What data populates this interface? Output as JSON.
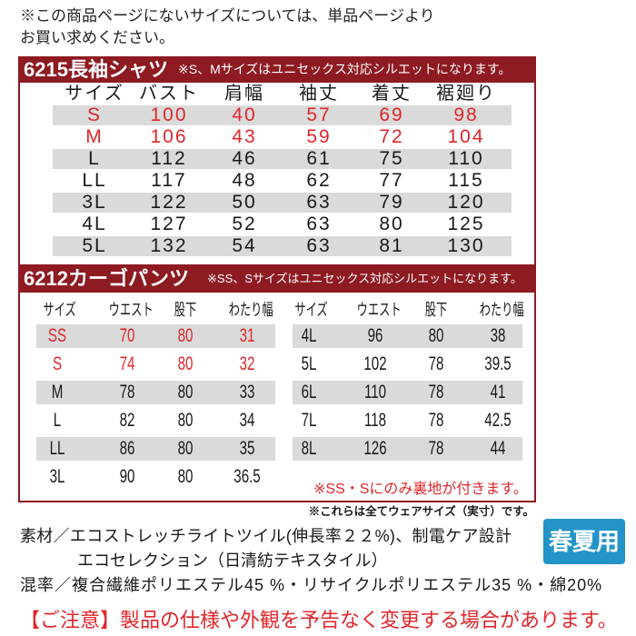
{
  "notice_top": [
    "※この商品ページにないサイズについては、単品ページより",
    "お買い求めください。"
  ],
  "colors": {
    "section_header_bg": "#8e1a22",
    "highlight_text": "#e0262b",
    "row_stripe": "#dadada",
    "season_badge_bg": "#2394c8"
  },
  "shirt": {
    "title": "6215長袖シャツ",
    "note": "※S、Mサイズはユニセックス対応シルエットになります。",
    "headers": [
      "サイズ",
      "バスト",
      "肩幅",
      "袖丈",
      "着丈",
      "裾廻り"
    ],
    "rows": [
      [
        "S",
        100,
        40,
        57,
        69,
        98
      ],
      [
        "M",
        106,
        43,
        59,
        72,
        104
      ],
      [
        "L",
        112,
        46,
        61,
        75,
        110
      ],
      [
        "LL",
        117,
        48,
        62,
        77,
        115
      ],
      [
        "3L",
        122,
        50,
        63,
        79,
        120
      ],
      [
        "4L",
        127,
        52,
        63,
        80,
        125
      ],
      [
        "5L",
        132,
        54,
        63,
        81,
        130
      ]
    ]
  },
  "pants": {
    "title": "6212カーゴパンツ",
    "note": "※SS、Sサイズはユニセックス対応シルエットになります。",
    "headers": [
      "サイズ",
      "ウエスト",
      "股下",
      "わたり幅"
    ],
    "rows_left": [
      [
        "SS",
        70,
        80,
        31
      ],
      [
        "S",
        74,
        80,
        32
      ],
      [
        "M",
        78,
        80,
        33
      ],
      [
        "L",
        82,
        80,
        34
      ],
      [
        "LL",
        86,
        80,
        35
      ],
      [
        "3L",
        90,
        80,
        36.5
      ]
    ],
    "rows_right": [
      [
        "4L",
        96,
        80,
        38
      ],
      [
        "5L",
        102,
        78,
        39.5
      ],
      [
        "6L",
        110,
        78,
        41
      ],
      [
        "7L",
        118,
        78,
        42.5
      ],
      [
        "8L",
        126,
        78,
        44
      ]
    ],
    "lining_note": "※SS・Sにのみ裏地が付きます。"
  },
  "size_note": "※これらは全てウェアサイズ（実寸）です。",
  "material": {
    "line1": "素材／エコストレッチライトツイル(伸長率２２%)、制電ケア設計",
    "line2": "エコセレクション（日清紡テキスタイル）"
  },
  "season_badge": "春夏用",
  "blend": "混率／複合繊維ポリエステル45 %・リサイクルポリエステル35 %・綿20%",
  "warning": "【ご注意】製品の仕様や外観を予告なく変更する場合があります。"
}
